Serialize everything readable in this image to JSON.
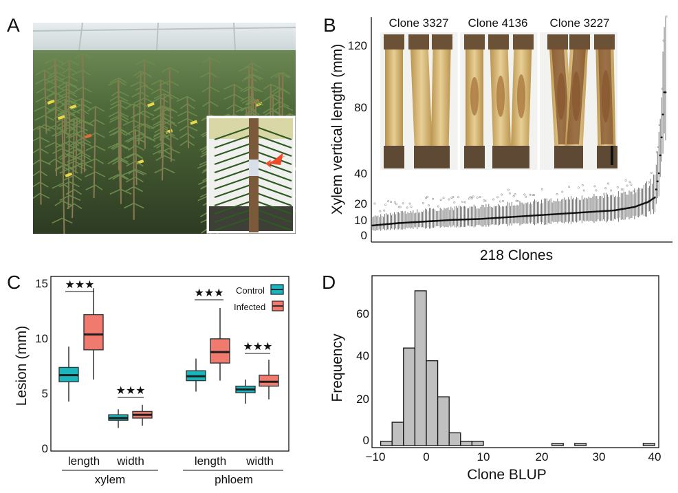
{
  "panels": {
    "A": {
      "letter": "A"
    },
    "B": {
      "letter": "B",
      "clone_labels": [
        "Clone 3327",
        "Clone 4136",
        "Clone 3227"
      ],
      "ylabel": "Xylem vertical length (mm)",
      "xlabel": "218  Clones",
      "ticks": [
        "0",
        "10",
        "20",
        "40",
        "80",
        "120"
      ]
    },
    "C": {
      "letter": "C",
      "ylabel": "Lesion (mm)",
      "ticks": [
        "0",
        "5",
        "10",
        "15"
      ],
      "sig": "★★★",
      "legend": {
        "control": "Control",
        "infected": "Infected"
      },
      "xlabels": {
        "length": "length",
        "width": "width",
        "xylem": "xylem",
        "phloem": "phloem"
      }
    },
    "D": {
      "letter": "D",
      "ylabel": "Frequency",
      "xlabel": "Clone BLUP",
      "xticks": [
        "−10",
        "0",
        "10",
        "20",
        "30",
        "40"
      ],
      "yticks": [
        "0",
        "20",
        "40",
        "60"
      ]
    }
  },
  "chart_data": [
    {
      "panel": "B",
      "type": "scatter",
      "title": "",
      "xlabel": "218  Clones",
      "ylabel": "Xylem vertical length (mm)",
      "y_ticks": [
        0,
        10,
        20,
        40,
        80,
        120
      ],
      "n_clones": 218,
      "clone_means_trend": [
        [
          1,
          7
        ],
        [
          20,
          8.5
        ],
        [
          40,
          9.5
        ],
        [
          60,
          10.5
        ],
        [
          80,
          11
        ],
        [
          100,
          12
        ],
        [
          120,
          13
        ],
        [
          140,
          14
        ],
        [
          160,
          15
        ],
        [
          180,
          16
        ],
        [
          195,
          18
        ],
        [
          205,
          21
        ],
        [
          210,
          24
        ],
        [
          213,
          40
        ],
        [
          215,
          62
        ],
        [
          217,
          90
        ]
      ]
    },
    {
      "panel": "C",
      "type": "box",
      "title": "",
      "ylabel": "Lesion (mm)",
      "ylim": [
        0,
        15
      ],
      "legend": [
        "Control",
        "Infected"
      ],
      "legend_colors": {
        "Control": "#1bb5bd",
        "Infected": "#f17a6f"
      },
      "groups": [
        {
          "tissue": "xylem",
          "measure": "length",
          "significance": "★★★",
          "Control": {
            "min": 4.5,
            "q1": 6.3,
            "median": 6.9,
            "q3": 7.6,
            "max": 9.5
          },
          "Infected": {
            "min": 6.5,
            "q1": 9.2,
            "median": 10.6,
            "q3": 12.4,
            "max": 14.8
          }
        },
        {
          "tissue": "xylem",
          "measure": "width",
          "significance": "★★★",
          "Control": {
            "min": 2.1,
            "q1": 2.8,
            "median": 3.0,
            "q3": 3.3,
            "max": 3.8
          },
          "Infected": {
            "min": 2.3,
            "q1": 3.0,
            "median": 3.3,
            "q3": 3.6,
            "max": 4.2
          }
        },
        {
          "tissue": "phloem",
          "measure": "length",
          "significance": "★★★",
          "Control": {
            "min": 5.4,
            "q1": 6.4,
            "median": 6.8,
            "q3": 7.3,
            "max": 8.4
          },
          "Infected": {
            "min": 6.4,
            "q1": 8.0,
            "median": 9.0,
            "q3": 10.2,
            "max": 13.0
          }
        },
        {
          "tissue": "phloem",
          "measure": "width",
          "significance": "★★★",
          "Control": {
            "min": 4.3,
            "q1": 5.3,
            "median": 5.6,
            "q3": 5.9,
            "max": 6.5
          },
          "Infected": {
            "min": 4.7,
            "q1": 5.9,
            "median": 6.3,
            "q3": 6.9,
            "max": 8.3
          }
        }
      ]
    },
    {
      "panel": "D",
      "type": "bar",
      "title": "",
      "xlabel": "Clone BLUP",
      "ylabel": "Frequency",
      "bin_width": 2,
      "xlim": [
        -10,
        40
      ],
      "ylim": [
        0,
        75
      ],
      "bins": [
        {
          "x0": -8,
          "count": 2
        },
        {
          "x0": -6,
          "count": 11
        },
        {
          "x0": -4,
          "count": 46
        },
        {
          "x0": -2,
          "count": 73
        },
        {
          "x0": 0,
          "count": 40
        },
        {
          "x0": 2,
          "count": 23
        },
        {
          "x0": 4,
          "count": 6
        },
        {
          "x0": 6,
          "count": 2
        },
        {
          "x0": 8,
          "count": 2
        },
        {
          "x0": 22,
          "count": 1
        },
        {
          "x0": 26,
          "count": 1
        },
        {
          "x0": 38,
          "count": 1
        }
      ]
    }
  ]
}
